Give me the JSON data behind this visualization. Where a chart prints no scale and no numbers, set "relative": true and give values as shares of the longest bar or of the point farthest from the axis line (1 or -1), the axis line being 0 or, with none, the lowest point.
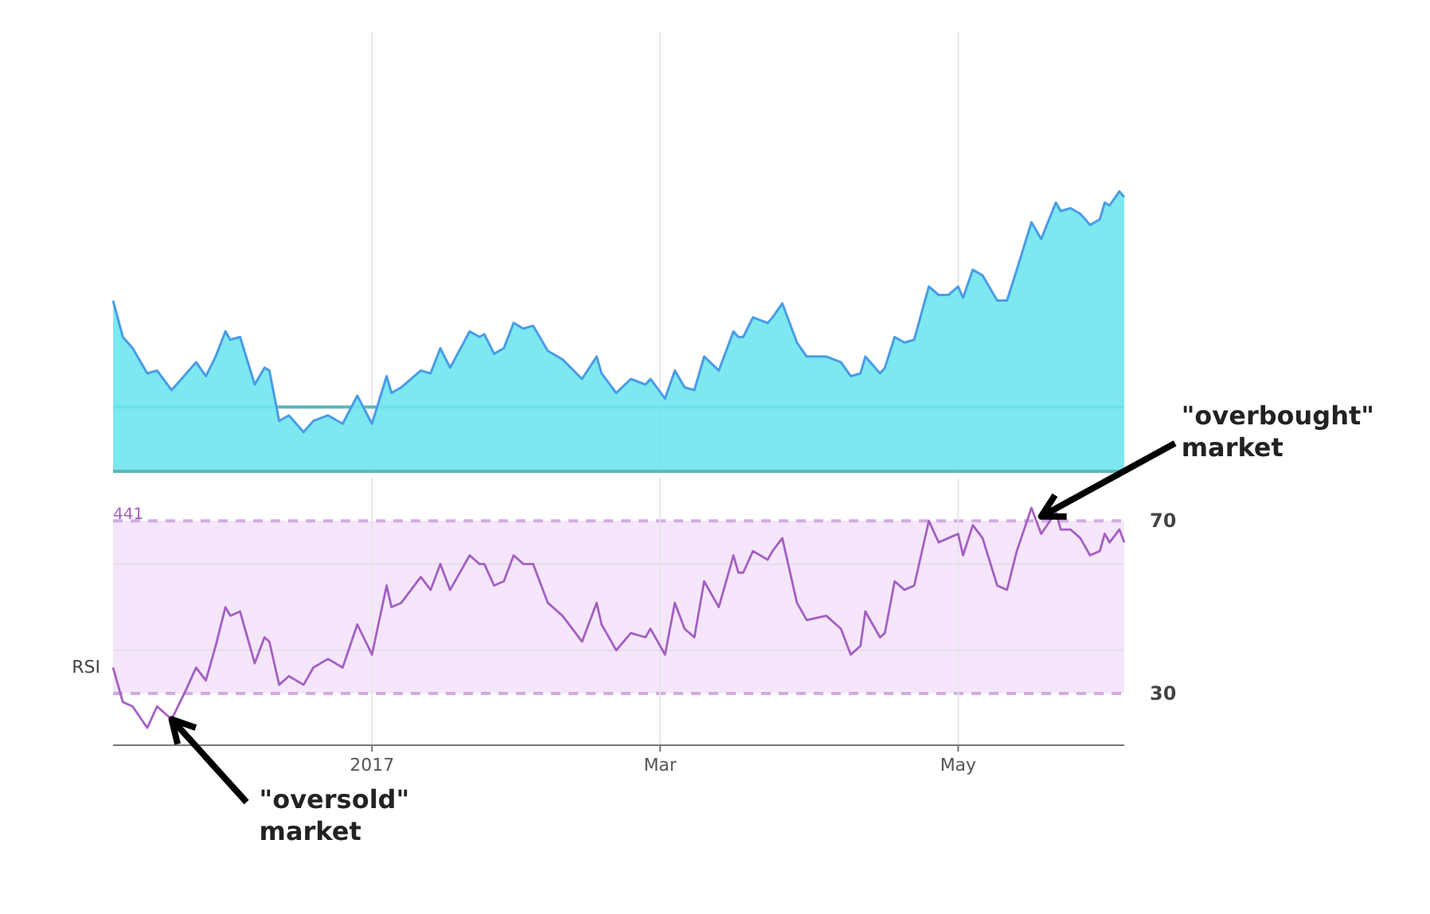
{
  "chart_data": [
    {
      "type": "area",
      "relative": true,
      "tick_labels": false,
      "grid": "x",
      "xlim": [
        "2016-11-09",
        "2017-06-04"
      ],
      "xticks": [
        {
          "value": "2017-01-01",
          "label": null
        },
        {
          "value": "2017-03-01",
          "label": null
        },
        {
          "value": "2017-05-01",
          "label": null
        }
      ],
      "ref_lines": [
        {
          "axis": "y",
          "value": 0.23,
          "color": "#5cb8bd"
        }
      ],
      "x": [
        "2016-11-09",
        "2016-11-11",
        "2016-11-13",
        "2016-11-16",
        "2016-11-18",
        "2016-11-21",
        "2016-11-24",
        "2016-11-26",
        "2016-11-28",
        "2016-11-30",
        "2016-12-02",
        "2016-12-03",
        "2016-12-05",
        "2016-12-08",
        "2016-12-10",
        "2016-12-11",
        "2016-12-13",
        "2016-12-15",
        "2016-12-18",
        "2016-12-20",
        "2016-12-23",
        "2016-12-26",
        "2016-12-29",
        "2017-01-01",
        "2017-01-04",
        "2017-01-05",
        "2017-01-07",
        "2017-01-11",
        "2017-01-13",
        "2017-01-15",
        "2017-01-17",
        "2017-01-21",
        "2017-01-23",
        "2017-01-24",
        "2017-01-26",
        "2017-01-28",
        "2017-01-30",
        "2017-02-01",
        "2017-02-03",
        "2017-02-06",
        "2017-02-09",
        "2017-02-13",
        "2017-02-16",
        "2017-02-17",
        "2017-02-20",
        "2017-02-23",
        "2017-02-26",
        "2017-02-27",
        "2017-03-02",
        "2017-03-04",
        "2017-03-06",
        "2017-03-08",
        "2017-03-10",
        "2017-03-13",
        "2017-03-16",
        "2017-03-17",
        "2017-03-18",
        "2017-03-20",
        "2017-03-23",
        "2017-03-24",
        "2017-03-26",
        "2017-03-29",
        "2017-03-31",
        "2017-04-04",
        "2017-04-07",
        "2017-04-09",
        "2017-04-11",
        "2017-04-12",
        "2017-04-15",
        "2017-04-16",
        "2017-04-18",
        "2017-04-20",
        "2017-04-22",
        "2017-04-25",
        "2017-04-27",
        "2017-04-29",
        "2017-05-01",
        "2017-05-02",
        "2017-05-04",
        "2017-05-06",
        "2017-05-09",
        "2017-05-11",
        "2017-05-13",
        "2017-05-16",
        "2017-05-18",
        "2017-05-21",
        "2017-05-22",
        "2017-05-24",
        "2017-05-26",
        "2017-05-28",
        "2017-05-30",
        "2017-05-31",
        "2017-06-01",
        "2017-06-03",
        "2017-06-04"
      ],
      "series": [
        {
          "color": "#6fe6ee",
          "values": [
            0.61,
            0.48,
            0.44,
            0.35,
            0.36,
            0.29,
            0.35,
            0.39,
            0.34,
            0.41,
            0.5,
            0.47,
            0.48,
            0.31,
            0.37,
            0.36,
            0.18,
            0.2,
            0.14,
            0.18,
            0.2,
            0.17,
            0.27,
            0.17,
            0.34,
            0.28,
            0.3,
            0.36,
            0.35,
            0.44,
            0.37,
            0.5,
            0.48,
            0.49,
            0.42,
            0.44,
            0.53,
            0.51,
            0.52,
            0.43,
            0.4,
            0.33,
            0.41,
            0.35,
            0.28,
            0.33,
            0.31,
            0.33,
            0.26,
            0.36,
            0.3,
            0.29,
            0.41,
            0.36,
            0.5,
            0.48,
            0.48,
            0.55,
            0.53,
            0.55,
            0.6,
            0.46,
            0.41,
            0.41,
            0.39,
            0.34,
            0.35,
            0.41,
            0.35,
            0.37,
            0.48,
            0.46,
            0.47,
            0.66,
            0.63,
            0.63,
            0.66,
            0.62,
            0.72,
            0.7,
            0.61,
            0.61,
            0.72,
            0.89,
            0.83,
            0.96,
            0.93,
            0.94,
            0.92,
            0.88,
            0.9,
            0.96,
            0.95,
            1.0,
            0.98
          ]
        }
      ]
    },
    {
      "type": "line",
      "ylabel": "RSI",
      "ylim": [
        18,
        80
      ],
      "yticks": [
        30,
        {
          "value": 40,
          "label": null
        },
        {
          "value": 60,
          "label": null
        },
        70
      ],
      "grid": true,
      "xlim": [
        "2016-11-09",
        "2017-06-04"
      ],
      "xticks": [
        {
          "value": "2017-01-01",
          "label": "2017"
        },
        {
          "value": "2017-03-01",
          "label": "Mar"
        },
        {
          "value": "2017-05-01",
          "label": "May"
        }
      ],
      "bands": [
        {
          "axis": "y",
          "from": 30,
          "to": 70,
          "color": "#f5e6fc"
        }
      ],
      "annotations": [
        "441",
        {
          "text": "\"overbought\" market",
          "x": "2017-05-18",
          "y": 71
        },
        {
          "text": "\"oversold\" market",
          "x": "2016-11-21",
          "y": 24
        }
      ],
      "x": [
        "2016-11-09",
        "2016-11-11",
        "2016-11-13",
        "2016-11-16",
        "2016-11-18",
        "2016-11-21",
        "2016-11-24",
        "2016-11-26",
        "2016-11-28",
        "2016-11-30",
        "2016-12-02",
        "2016-12-03",
        "2016-12-05",
        "2016-12-08",
        "2016-12-10",
        "2016-12-11",
        "2016-12-13",
        "2016-12-15",
        "2016-12-18",
        "2016-12-20",
        "2016-12-23",
        "2016-12-26",
        "2016-12-29",
        "2017-01-01",
        "2017-01-04",
        "2017-01-05",
        "2017-01-07",
        "2017-01-11",
        "2017-01-13",
        "2017-01-15",
        "2017-01-17",
        "2017-01-21",
        "2017-01-23",
        "2017-01-24",
        "2017-01-26",
        "2017-01-28",
        "2017-01-30",
        "2017-02-01",
        "2017-02-03",
        "2017-02-06",
        "2017-02-09",
        "2017-02-13",
        "2017-02-16",
        "2017-02-17",
        "2017-02-20",
        "2017-02-23",
        "2017-02-26",
        "2017-02-27",
        "2017-03-02",
        "2017-03-04",
        "2017-03-06",
        "2017-03-08",
        "2017-03-10",
        "2017-03-13",
        "2017-03-16",
        "2017-03-17",
        "2017-03-18",
        "2017-03-20",
        "2017-03-23",
        "2017-03-24",
        "2017-03-26",
        "2017-03-29",
        "2017-03-31",
        "2017-04-04",
        "2017-04-07",
        "2017-04-09",
        "2017-04-11",
        "2017-04-12",
        "2017-04-15",
        "2017-04-16",
        "2017-04-18",
        "2017-04-20",
        "2017-04-22",
        "2017-04-25",
        "2017-04-27",
        "2017-04-29",
        "2017-05-01",
        "2017-05-02",
        "2017-05-04",
        "2017-05-06",
        "2017-05-09",
        "2017-05-11",
        "2017-05-13",
        "2017-05-16",
        "2017-05-18",
        "2017-05-21",
        "2017-05-22",
        "2017-05-24",
        "2017-05-26",
        "2017-05-28",
        "2017-05-30",
        "2017-05-31",
        "2017-06-01",
        "2017-06-03",
        "2017-06-04"
      ],
      "series": [
        {
          "color": "#a45fc2",
          "values": [
            36,
            28,
            27,
            22,
            27,
            24,
            31,
            36,
            33,
            41,
            50,
            48,
            49,
            37,
            43,
            42,
            32,
            34,
            32,
            36,
            38,
            36,
            46,
            39,
            55,
            50,
            51,
            57,
            54,
            60,
            54,
            62,
            60,
            60,
            55,
            56,
            62,
            60,
            60,
            51,
            48,
            42,
            51,
            46,
            40,
            44,
            43,
            45,
            39,
            51,
            45,
            43,
            56,
            50,
            62,
            58,
            58,
            63,
            61,
            63,
            66,
            51,
            47,
            48,
            45,
            39,
            41,
            49,
            43,
            44,
            56,
            54,
            55,
            70,
            65,
            66,
            67,
            62,
            69,
            66,
            55,
            54,
            63,
            73,
            67,
            72,
            68,
            68,
            66,
            62,
            63,
            67,
            65,
            68,
            65
          ]
        }
      ]
    }
  ]
}
